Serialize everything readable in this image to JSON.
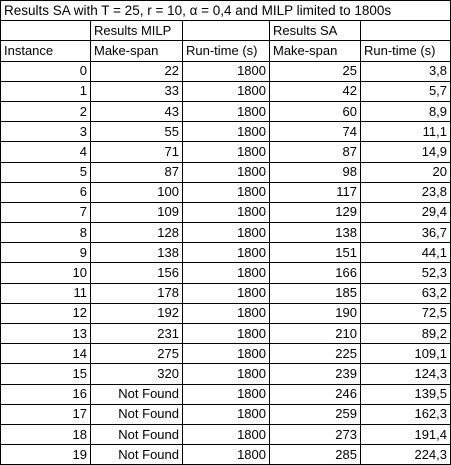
{
  "title": "Results SA with T = 25, r = 10,  α = 0,4 and MILP limited to 1800s",
  "group_headers": {
    "milp": "Results MILP",
    "sa": "Results SA"
  },
  "column_headers": [
    "Instance",
    "Make-span",
    "Run-time (s)",
    "Make-span",
    "Run-time (s)"
  ],
  "rows": [
    [
      "0",
      "22",
      "1800",
      "25",
      "3,8"
    ],
    [
      "1",
      "33",
      "1800",
      "42",
      "5,7"
    ],
    [
      "2",
      "43",
      "1800",
      "60",
      "8,9"
    ],
    [
      "3",
      "55",
      "1800",
      "74",
      "11,1"
    ],
    [
      "4",
      "71",
      "1800",
      "87",
      "14,9"
    ],
    [
      "5",
      "87",
      "1800",
      "98",
      "20"
    ],
    [
      "6",
      "100",
      "1800",
      "117",
      "23,8"
    ],
    [
      "7",
      "109",
      "1800",
      "129",
      "29,4"
    ],
    [
      "8",
      "128",
      "1800",
      "138",
      "36,7"
    ],
    [
      "9",
      "138",
      "1800",
      "151",
      "44,1"
    ],
    [
      "10",
      "156",
      "1800",
      "166",
      "52,3"
    ],
    [
      "11",
      "178",
      "1800",
      "185",
      "63,2"
    ],
    [
      "12",
      "192",
      "1800",
      "190",
      "72,5"
    ],
    [
      "13",
      "231",
      "1800",
      "210",
      "89,2"
    ],
    [
      "14",
      "275",
      "1800",
      "225",
      "109,1"
    ],
    [
      "15",
      "320",
      "1800",
      "239",
      "124,3"
    ],
    [
      "16",
      "Not Found",
      "1800",
      "246",
      "139,5"
    ],
    [
      "17",
      "Not Found",
      "1800",
      "259",
      "162,3"
    ],
    [
      "18",
      "Not Found",
      "1800",
      "273",
      "191,4"
    ],
    [
      "19",
      "Not Found",
      "1800",
      "285",
      "224,3"
    ]
  ]
}
